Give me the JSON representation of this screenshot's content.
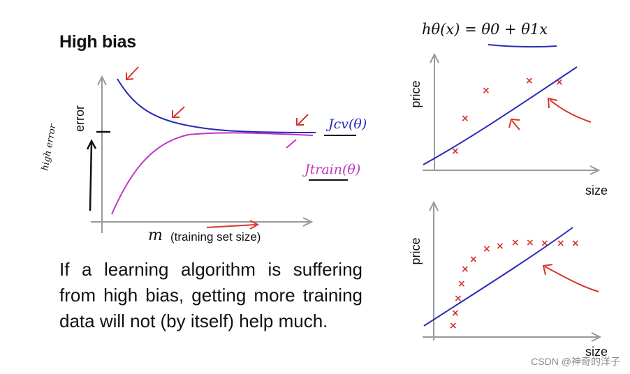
{
  "title": "High bias",
  "formula": "hθ(x) = θ0 + θ1x",
  "left_plot": {
    "ylabel": "error",
    "xlabel_var": "m",
    "xlabel_text": "(training set size)",
    "cv_curve_label": "Jcv(θ)",
    "train_curve_label": "Jtrain(θ)",
    "annotation": "high error",
    "colors": {
      "cv": "#2a2ab8",
      "train": "#c236c2",
      "arrows": "#d6362c"
    }
  },
  "body_text": "If a learning algorithm is suffering from high bias, getting more training data will not (by itself) help much.",
  "top_right_plot": {
    "ylabel": "price",
    "xlabel": "size"
  },
  "bottom_right_plot": {
    "ylabel": "price",
    "xlabel": "size"
  },
  "watermark": "CSDN @神奇的洋子"
}
